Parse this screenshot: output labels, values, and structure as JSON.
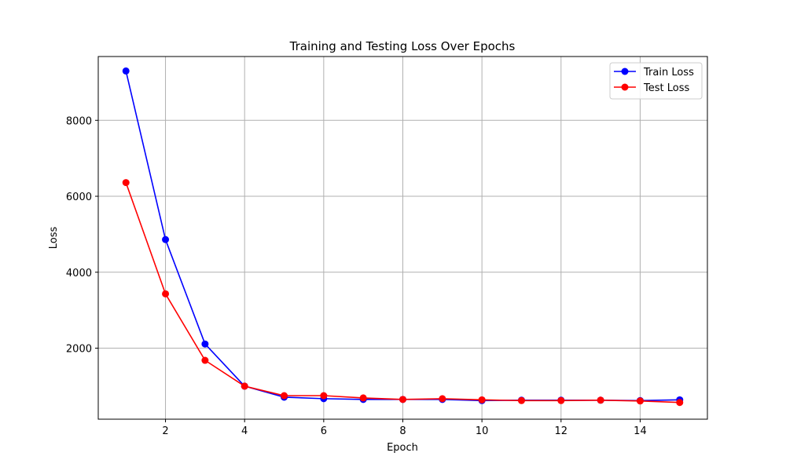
{
  "chart_data": {
    "type": "line",
    "title": "Training and Testing Loss Over Epochs",
    "xlabel": "Epoch",
    "ylabel": "Loss",
    "x": [
      1,
      2,
      3,
      4,
      5,
      6,
      7,
      8,
      9,
      10,
      11,
      12,
      13,
      14,
      15
    ],
    "xlim": [
      0.3,
      15.7
    ],
    "ylim": [
      130,
      9680
    ],
    "xticks": [
      2,
      4,
      6,
      8,
      10,
      12,
      14
    ],
    "yticks": [
      2000,
      4000,
      6000,
      8000
    ],
    "grid": true,
    "legend_position": "top-right",
    "series": [
      {
        "name": "Train Loss",
        "color": "#0000ff",
        "values": [
          9300,
          4860,
          2110,
          1000,
          710,
          670,
          650,
          650,
          650,
          620,
          630,
          630,
          630,
          620,
          640
        ]
      },
      {
        "name": "Test Loss",
        "color": "#ff0000",
        "values": [
          6360,
          3430,
          1680,
          1000,
          750,
          750,
          690,
          650,
          670,
          640,
          620,
          620,
          630,
          610,
          570
        ]
      }
    ]
  }
}
